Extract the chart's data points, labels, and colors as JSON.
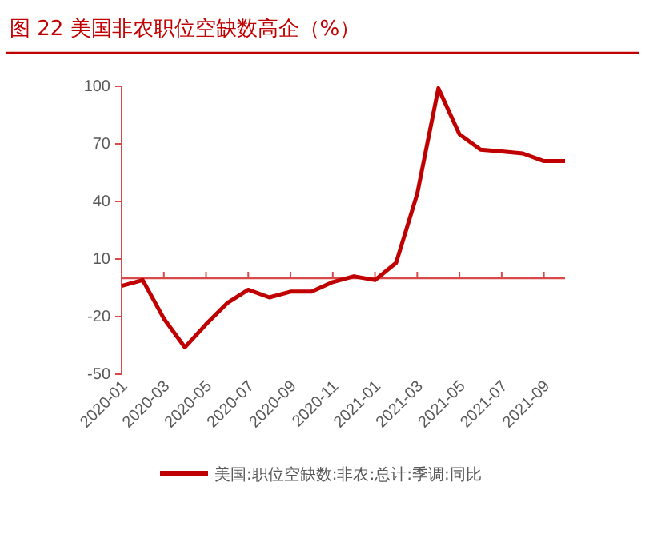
{
  "chart_data": {
    "type": "line",
    "title": "图 22 美国非农职位空缺数高企（%）",
    "categories": [
      "2020-01",
      null,
      "2020-03",
      null,
      "2020-05",
      null,
      "2020-07",
      null,
      "2020-09",
      null,
      "2020-11",
      null,
      "2021-01",
      null,
      "2021-03",
      null,
      "2021-05",
      null,
      "2021-07",
      null,
      "2021-09",
      null
    ],
    "series": [
      {
        "name": "美国:职位空缺数:非农:总计:季调:同比",
        "color": "#c00000",
        "values": [
          -4,
          -1,
          -21,
          -36,
          -24,
          -13,
          -6,
          -10,
          -7,
          -7,
          -2,
          1,
          -1,
          8,
          44,
          99,
          75,
          67,
          66,
          65,
          61,
          61
        ]
      }
    ],
    "ylim": [
      -50,
      100
    ],
    "yticks": [
      -50,
      -20,
      10,
      40,
      70,
      100
    ],
    "ref_lines": [
      {
        "axis": "y",
        "value": 0,
        "color": "#d84a4a"
      }
    ],
    "grid": false,
    "legend": "bottom",
    "marker": "none",
    "line_style": "solid"
  }
}
